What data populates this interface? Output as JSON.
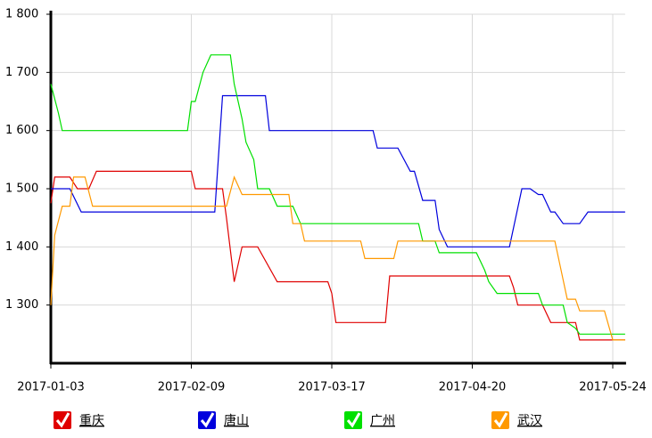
{
  "chart_data": {
    "type": "line",
    "xlim": [
      "2017-01-03",
      "2017-05-27"
    ],
    "xticks": [
      "2017-01-03",
      "2017-02-09",
      "2017-03-17",
      "2017-04-20",
      "2017-05-24"
    ],
    "ylim": [
      1200,
      1800
    ],
    "yticks": [
      {
        "value": 1300,
        "label": "1 300"
      },
      {
        "value": 1400,
        "label": "1 400"
      },
      {
        "value": 1500,
        "label": "1 500"
      },
      {
        "value": 1600,
        "label": "1 600"
      },
      {
        "value": 1700,
        "label": "1 700"
      },
      {
        "value": 1800,
        "label": "1 800"
      }
    ],
    "grid": true,
    "legend": "bottom",
    "series": [
      {
        "name": "重庆",
        "color": "#e00000",
        "x": [
          "2017-01-03",
          "2017-01-04",
          "2017-01-08",
          "2017-01-10",
          "2017-01-13",
          "2017-01-15",
          "2017-02-09",
          "2017-02-10",
          "2017-02-17",
          "2017-02-18",
          "2017-02-20",
          "2017-02-22",
          "2017-02-26",
          "2017-03-03",
          "2017-03-16",
          "2017-03-17",
          "2017-03-18",
          "2017-03-30",
          "2017-03-31",
          "2017-04-29",
          "2017-04-30",
          "2017-05-01",
          "2017-05-07",
          "2017-05-09",
          "2017-05-15",
          "2017-05-16",
          "2017-05-27"
        ],
        "values": [
          1475,
          1520,
          1520,
          1500,
          1500,
          1530,
          1530,
          1500,
          1500,
          1450,
          1340,
          1400,
          1400,
          1340,
          1340,
          1320,
          1270,
          1270,
          1350,
          1350,
          1330,
          1300,
          1300,
          1270,
          1270,
          1240,
          1240
        ]
      },
      {
        "name": "唐山",
        "color": "#0000dd",
        "x": [
          "2017-01-03",
          "2017-01-08",
          "2017-01-11",
          "2017-02-15",
          "2017-02-17",
          "2017-02-28",
          "2017-03-01",
          "2017-03-27",
          "2017-03-28",
          "2017-04-02",
          "2017-04-05",
          "2017-04-06",
          "2017-04-08",
          "2017-04-11",
          "2017-04-12",
          "2017-04-14",
          "2017-04-29",
          "2017-05-02",
          "2017-05-04",
          "2017-05-06",
          "2017-05-07",
          "2017-05-09",
          "2017-05-10",
          "2017-05-12",
          "2017-05-16",
          "2017-05-18",
          "2017-05-27"
        ],
        "values": [
          1500,
          1500,
          1460,
          1460,
          1660,
          1660,
          1600,
          1600,
          1570,
          1570,
          1530,
          1530,
          1480,
          1480,
          1430,
          1400,
          1400,
          1500,
          1500,
          1490,
          1490,
          1460,
          1460,
          1440,
          1440,
          1460,
          1460
        ]
      },
      {
        "name": "广州",
        "color": "#00e000",
        "x": [
          "2017-01-03",
          "2017-01-05",
          "2017-01-06",
          "2017-02-08",
          "2017-02-09",
          "2017-02-10",
          "2017-02-12",
          "2017-02-14",
          "2017-02-19",
          "2017-02-20",
          "2017-02-22",
          "2017-02-23",
          "2017-02-25",
          "2017-02-26",
          "2017-03-01",
          "2017-03-03",
          "2017-03-07",
          "2017-03-09",
          "2017-04-07",
          "2017-04-08",
          "2017-04-11",
          "2017-04-12",
          "2017-04-21",
          "2017-04-23",
          "2017-04-24",
          "2017-04-26",
          "2017-05-06",
          "2017-05-07",
          "2017-05-12",
          "2017-05-13",
          "2017-05-15",
          "2017-05-16",
          "2017-05-27"
        ],
        "values": [
          1680,
          1630,
          1600,
          1600,
          1650,
          1650,
          1700,
          1730,
          1730,
          1680,
          1620,
          1580,
          1550,
          1500,
          1500,
          1470,
          1470,
          1440,
          1440,
          1410,
          1410,
          1390,
          1390,
          1360,
          1340,
          1320,
          1320,
          1300,
          1300,
          1270,
          1260,
          1250,
          1250
        ]
      },
      {
        "name": "武汉",
        "color": "#ff9900",
        "x": [
          "2017-01-03",
          "2017-01-04",
          "2017-01-06",
          "2017-01-08",
          "2017-01-09",
          "2017-01-12",
          "2017-01-14",
          "2017-02-18",
          "2017-02-20",
          "2017-02-22",
          "2017-03-06",
          "2017-03-07",
          "2017-03-09",
          "2017-03-10",
          "2017-03-24",
          "2017-03-25",
          "2017-04-01",
          "2017-04-02",
          "2017-05-10",
          "2017-05-13",
          "2017-05-15",
          "2017-05-16",
          "2017-05-22",
          "2017-05-24",
          "2017-05-27"
        ],
        "values": [
          1300,
          1420,
          1470,
          1470,
          1520,
          1520,
          1470,
          1470,
          1520,
          1490,
          1490,
          1440,
          1440,
          1410,
          1410,
          1380,
          1380,
          1410,
          1410,
          1310,
          1310,
          1290,
          1290,
          1240,
          1240
        ]
      }
    ]
  }
}
